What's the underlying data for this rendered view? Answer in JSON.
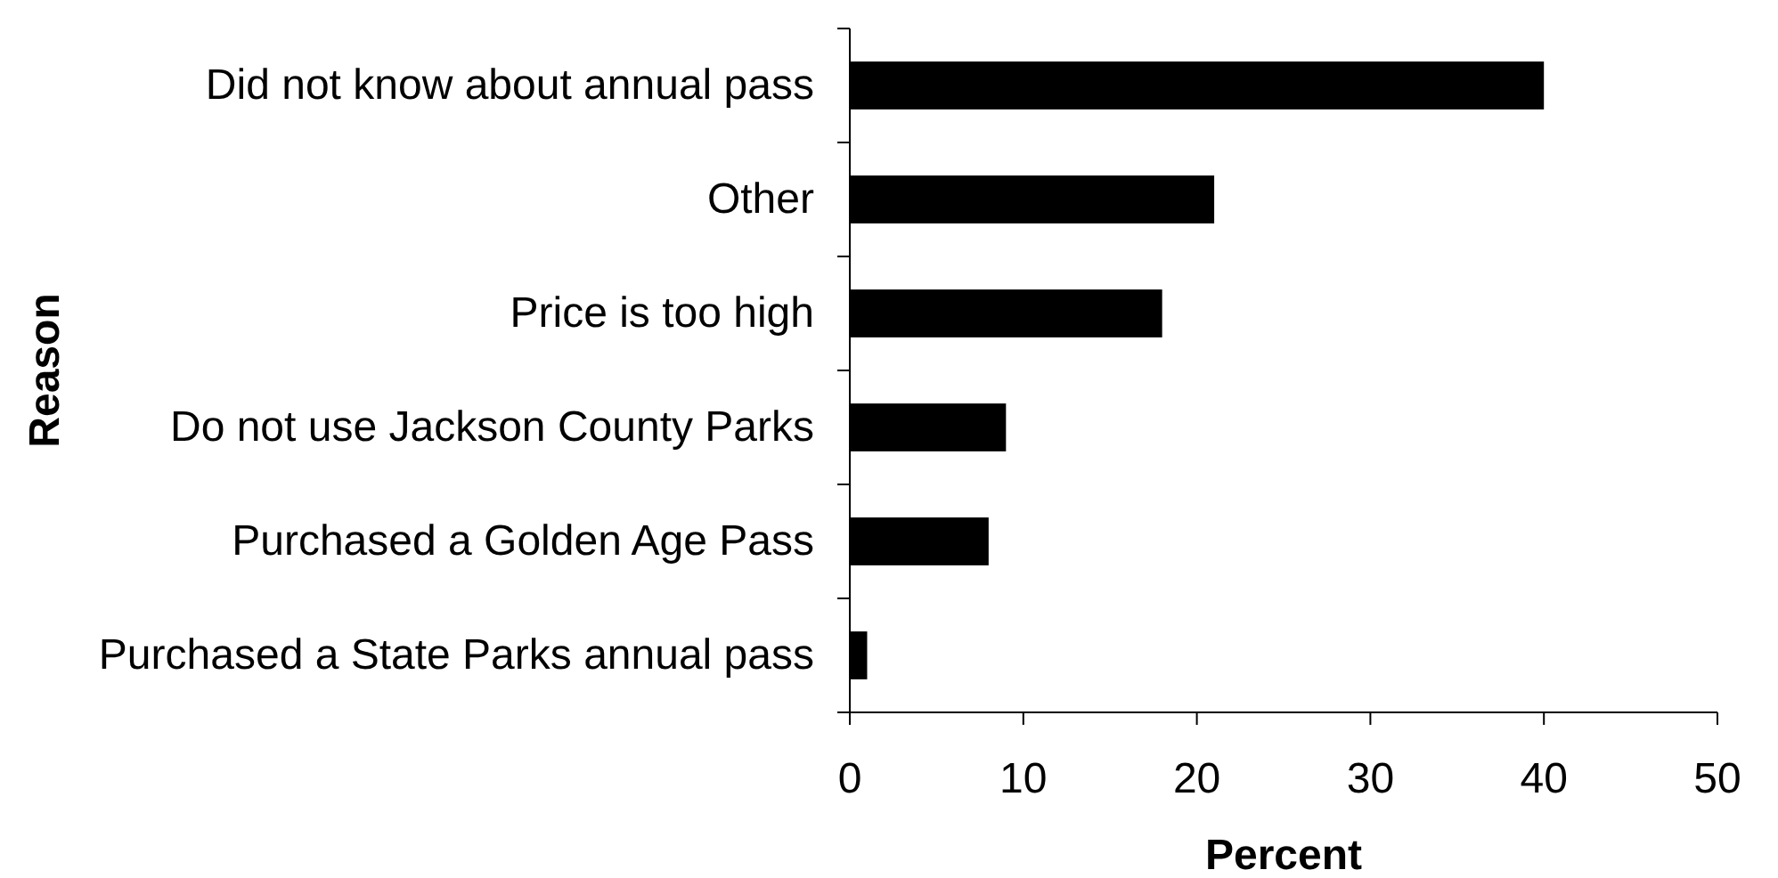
{
  "chart_data": {
    "type": "bar",
    "orientation": "horizontal",
    "categories": [
      "Did not know about annual pass",
      "Other",
      "Price is too high",
      "Do not use Jackson County Parks",
      "Purchased a Golden Age Pass",
      "Purchased a State Parks annual pass"
    ],
    "values": [
      40,
      21,
      18,
      9,
      8,
      1
    ],
    "color": "#000000",
    "xlim": [
      0,
      50
    ],
    "xticks": [
      0,
      10,
      20,
      30,
      40,
      50
    ],
    "xlabel": "Percent",
    "ylabel": "Reason",
    "grid": false
  }
}
